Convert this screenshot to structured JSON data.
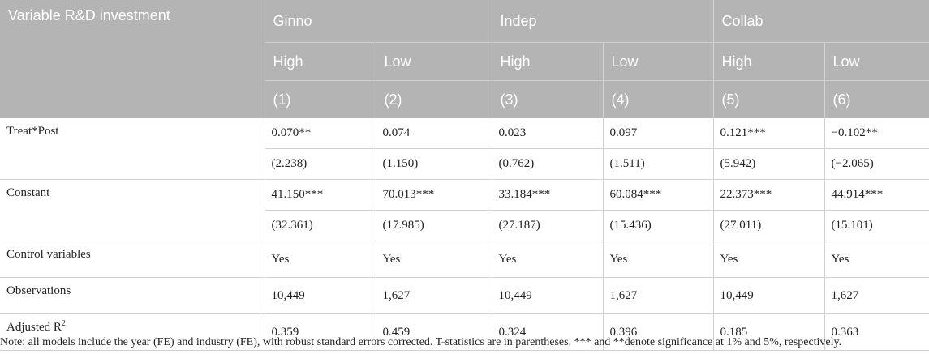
{
  "header": {
    "variable_label": "Variable R&D investment",
    "groups": [
      "Ginno",
      "Indep",
      "Collab"
    ],
    "subgroups": [
      "High",
      "Low",
      "High",
      "Low",
      "High",
      "Low"
    ],
    "models": [
      "(1)",
      "(2)",
      "(3)",
      "(4)",
      "(5)",
      "(6)"
    ]
  },
  "rows": [
    {
      "label": "Treat*Post",
      "values": [
        "0.070**",
        "0.074",
        "0.023",
        "0.097",
        "0.121***",
        "−0.102**"
      ]
    },
    {
      "label": "",
      "values": [
        "(2.238)",
        "(1.150)",
        "(0.762)",
        "(1.511)",
        "(5.942)",
        "(−2.065)"
      ]
    },
    {
      "label": "Constant",
      "values": [
        "41.150***",
        "70.013***",
        "33.184***",
        "60.084***",
        "22.373***",
        "44.914***"
      ]
    },
    {
      "label": "",
      "values": [
        "(32.361)",
        "(17.985)",
        "(27.187)",
        "(15.436)",
        "(27.011)",
        "(15.101)"
      ]
    },
    {
      "label": "Control variables",
      "values": [
        "Yes",
        "Yes",
        "Yes",
        "Yes",
        "Yes",
        "Yes"
      ]
    },
    {
      "label": "Observations",
      "values": [
        "10,449",
        "1,627",
        "10,449",
        "1,627",
        "10,449",
        "1,627"
      ]
    },
    {
      "label_main": "Adjusted R",
      "label_sup": "2",
      "values": [
        "0.359",
        "0.459",
        "0.324",
        "0.396",
        "0.185",
        "0.363"
      ]
    }
  ],
  "note": "Note: all models include the year (FE) and industry (FE), with robust standard errors corrected. T-statistics are in parentheses. *** and **denote significance at 1% and 5%, respectively.",
  "colors": {
    "header_bg": "#b4b4b4",
    "header_text": "#ffffff",
    "grid": "#d0d0d0"
  }
}
